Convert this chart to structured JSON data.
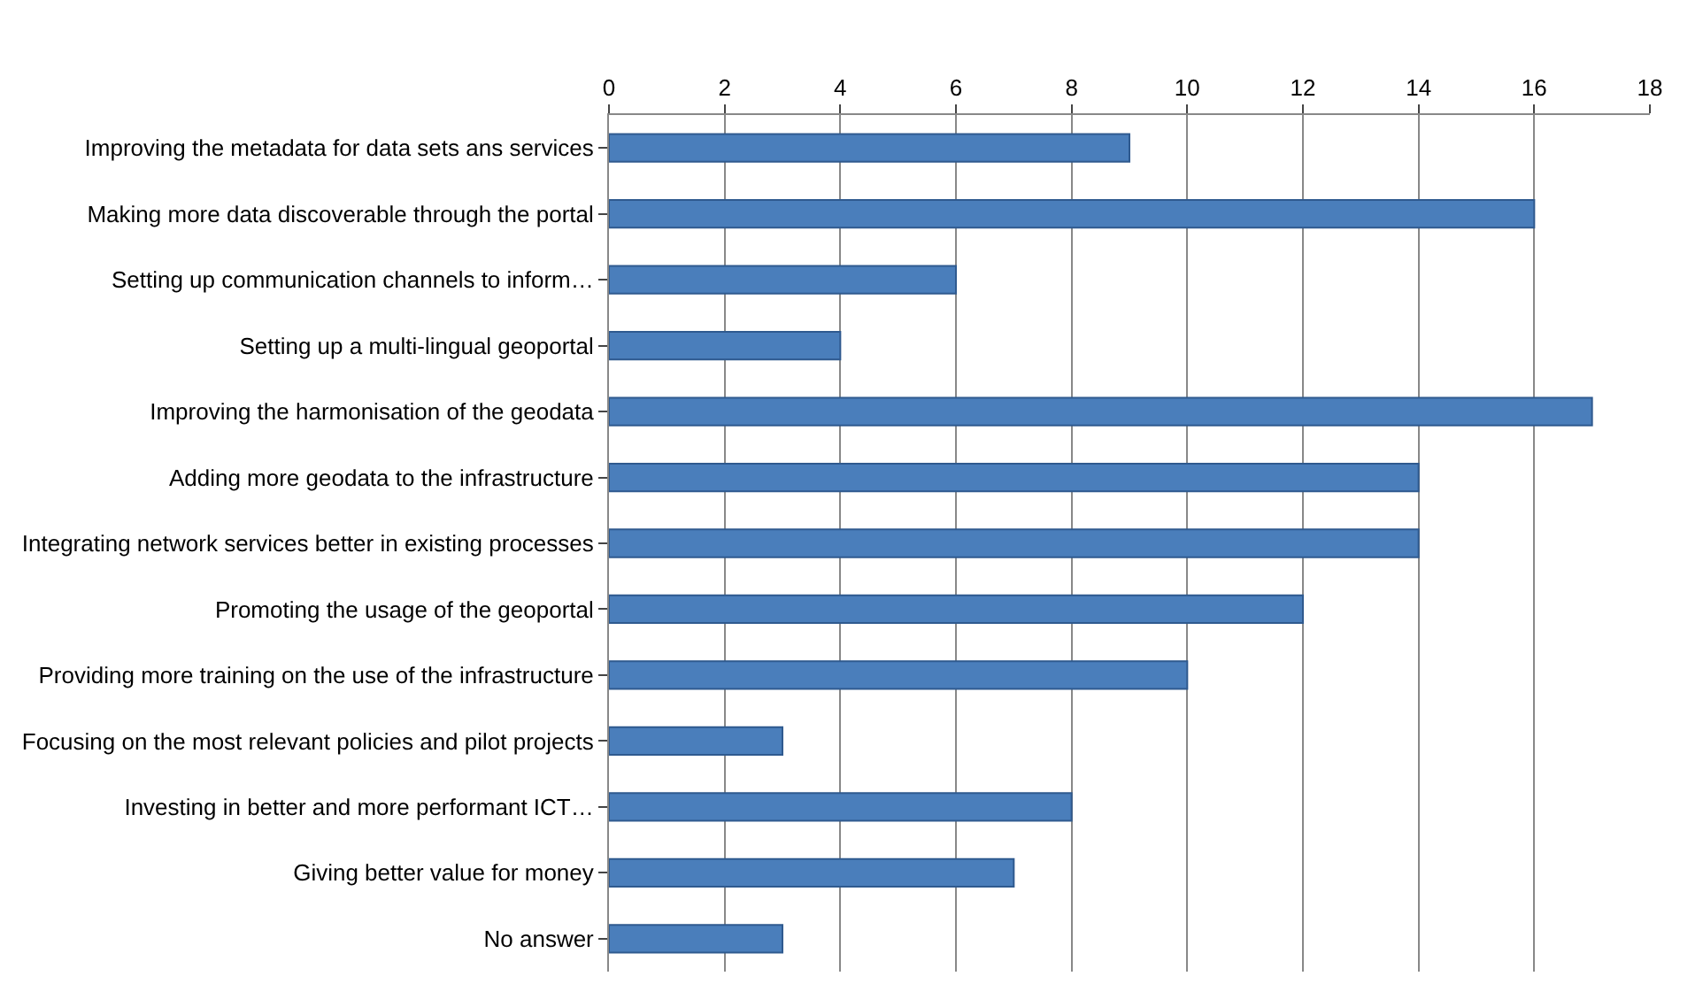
{
  "chart_data": {
    "type": "bar",
    "orientation": "horizontal",
    "categories": [
      "Improving the metadata for data sets ans services",
      "Making more data discoverable through the portal",
      "Setting up communication channels to inform…",
      "Setting up a multi-lingual geoportal",
      "Improving the harmonisation of the geodata",
      "Adding more geodata to the infrastructure",
      "Integrating network services better in existing processes",
      "Promoting the usage of the geoportal",
      "Providing more training on the use of the infrastructure",
      "Focusing on the most relevant policies and pilot projects",
      "Investing in better and more performant ICT…",
      "Giving better value for money",
      "No answer"
    ],
    "values": [
      9,
      16,
      6,
      4,
      17,
      14,
      14,
      12,
      10,
      3,
      8,
      7,
      3
    ],
    "color": "#4a7ebb",
    "xlim": [
      0,
      18
    ],
    "xticks": [
      0,
      2,
      4,
      6,
      8,
      10,
      12,
      14,
      16,
      18
    ],
    "grid": "x",
    "legend": false
  }
}
